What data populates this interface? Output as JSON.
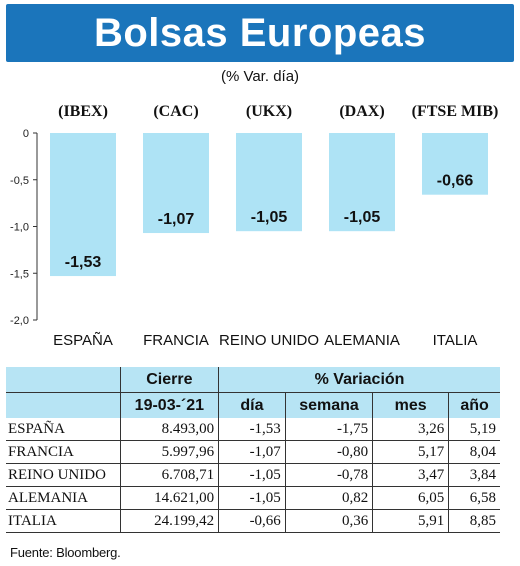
{
  "header": {
    "title": "Bolsas Europeas",
    "subtitle": "(% Var. día)"
  },
  "chart_data": {
    "type": "bar",
    "indices": [
      "(IBEX)",
      "(CAC)",
      "(UKX)",
      "(DAX)",
      "(FTSE MIB)"
    ],
    "categories": [
      "ESPAÑA",
      "FRANCIA",
      "REINO UNIDO",
      "ALEMANIA",
      "ITALIA"
    ],
    "values": [
      -1.53,
      -1.07,
      -1.05,
      -1.05,
      -0.66
    ],
    "value_labels": [
      "-1,53",
      "-1,07",
      "-1,05",
      "-1,05",
      "-0,66"
    ],
    "ylim": [
      -2.0,
      0
    ],
    "yticks": [
      0,
      -0.5,
      -1.0,
      -1.5,
      -2.0
    ],
    "ytick_labels": [
      "0",
      "-0,5",
      "-1,0",
      "-1,5",
      "-2,0"
    ],
    "bar_color": "#aee3f5",
    "grid": false
  },
  "table": {
    "group_headers": {
      "close": "Cierre",
      "variation": "% Variación"
    },
    "date": "19-03-´21",
    "columns": [
      "día",
      "semana",
      "mes",
      "año"
    ],
    "rows": [
      {
        "name": "ESPAÑA",
        "close": "8.493,00",
        "dia": "-1,53",
        "semana": "-1,75",
        "mes": "3,26",
        "ano": "5,19"
      },
      {
        "name": "FRANCIA",
        "close": "5.997,96",
        "dia": "-1,07",
        "semana": "-0,80",
        "mes": "5,17",
        "ano": "8,04"
      },
      {
        "name": "REINO UNIDO",
        "close": "6.708,71",
        "dia": "-1,05",
        "semana": "-0,78",
        "mes": "3,47",
        "ano": "3,84"
      },
      {
        "name": "ALEMANIA",
        "close": "14.621,00",
        "dia": "-1,05",
        "semana": "0,82",
        "mes": "6,05",
        "ano": "6,58"
      },
      {
        "name": "ITALIA",
        "close": "24.199,42",
        "dia": "-0,66",
        "semana": "0,36",
        "mes": "5,91",
        "ano": "8,85"
      }
    ]
  },
  "source": "Fuente: Bloomberg.",
  "colors": {
    "title_bg": "#1b75bb",
    "header_bg": "#b7e4f4"
  }
}
